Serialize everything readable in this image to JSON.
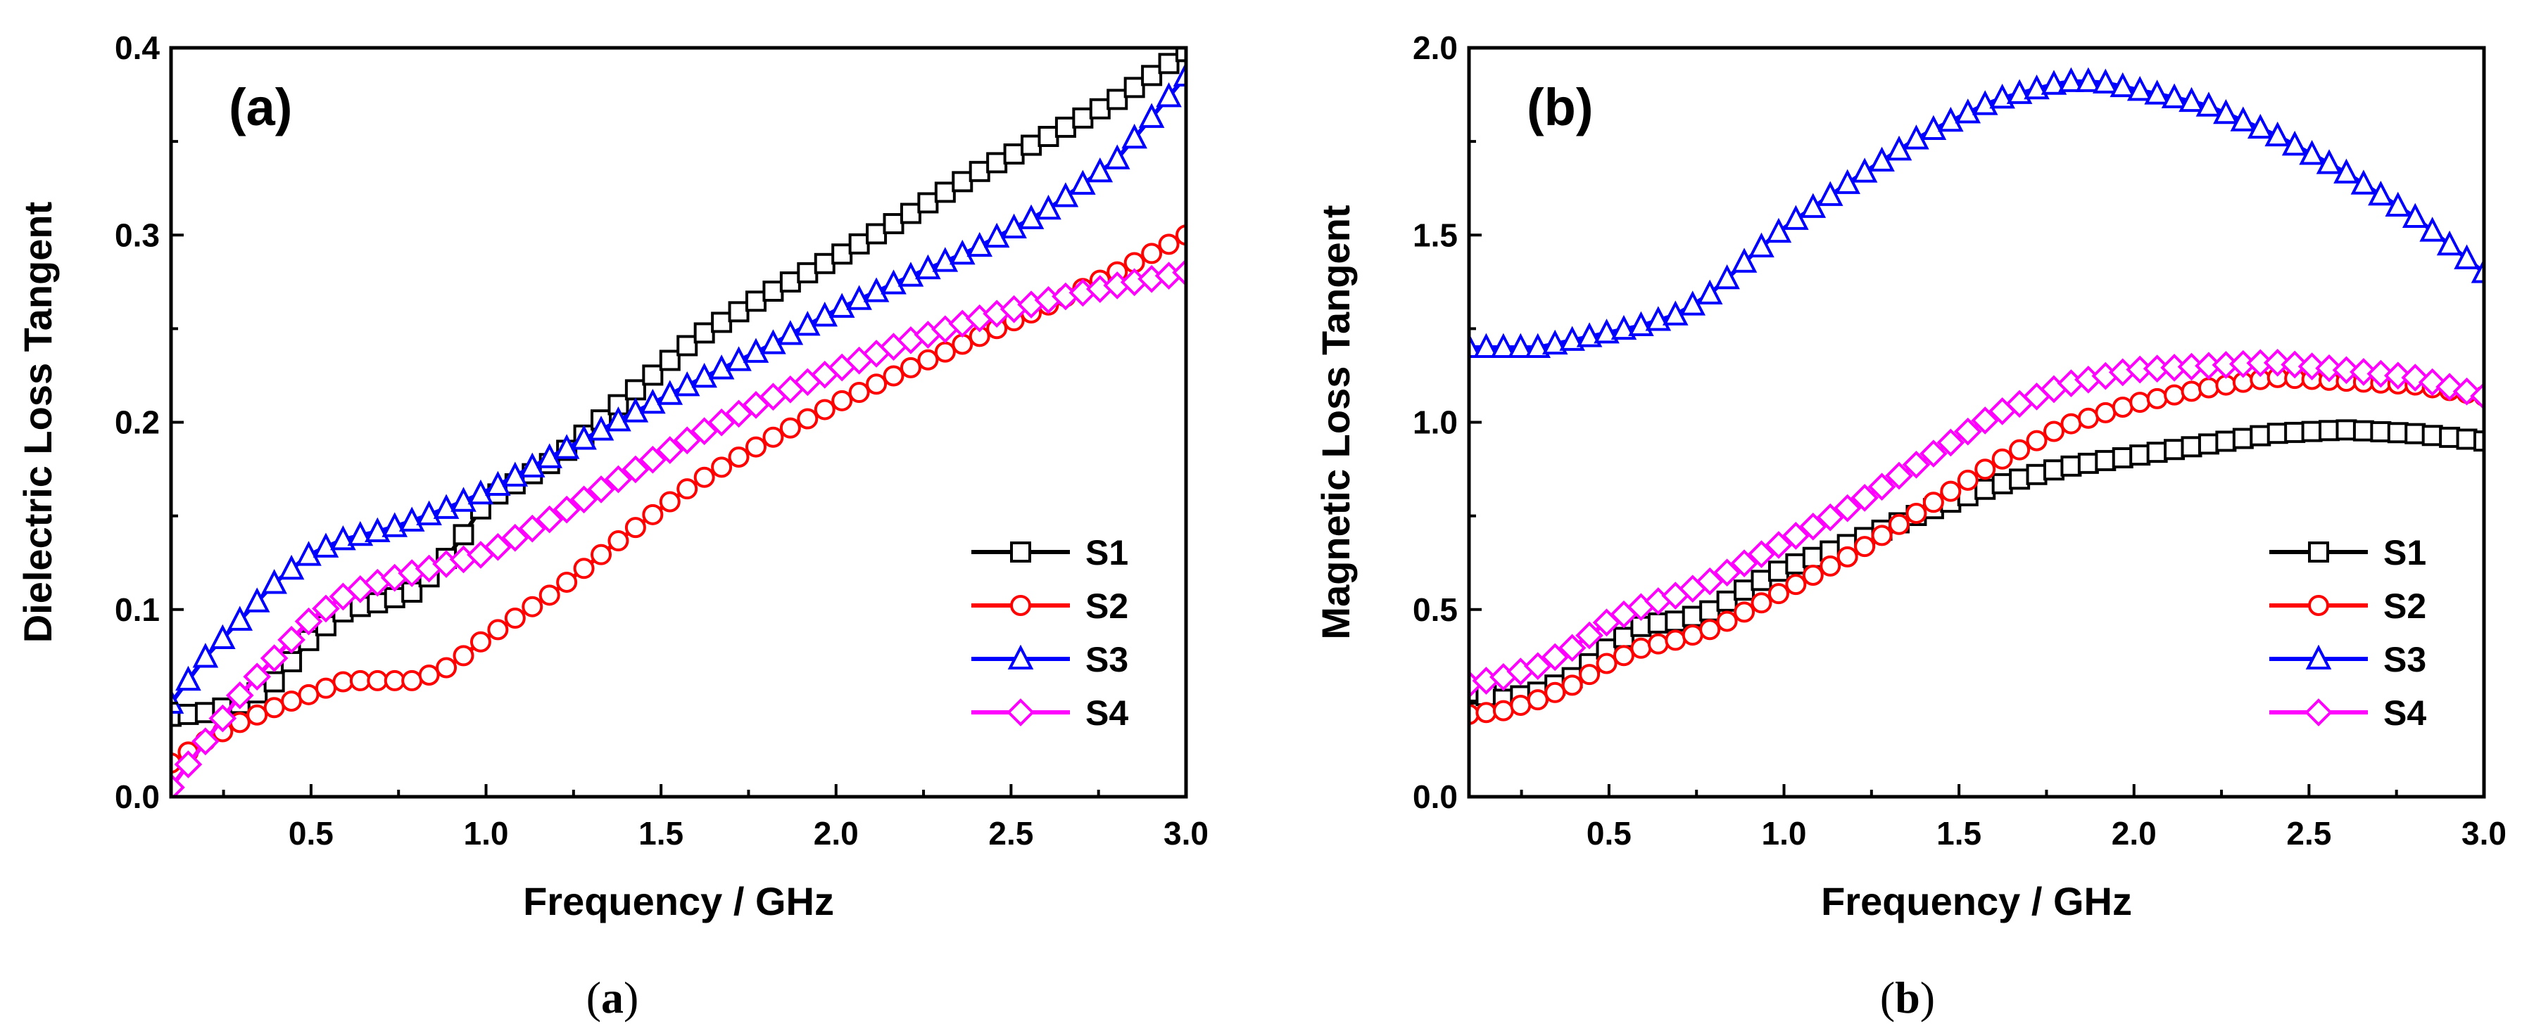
{
  "colors": {
    "S1": "#000000",
    "S2": "#ff0000",
    "S3": "#0000ff",
    "S4": "#ff00ff"
  },
  "markers": {
    "S1": "square",
    "S2": "circle",
    "S3": "triangle",
    "S4": "diamond"
  },
  "captions": [
    {
      "open": "(",
      "letter": "a",
      "close": ")"
    },
    {
      "open": "(",
      "letter": "b",
      "close": ")"
    }
  ],
  "chart_data": [
    {
      "type": "line",
      "panel_label": "(a)",
      "title": "",
      "xlabel": "Frequency / GHz",
      "ylabel": "Dielectric Loss Tangent",
      "xlim": [
        0.1,
        3.0
      ],
      "ylim": [
        0.0,
        0.4
      ],
      "xticks": [
        "0.5",
        "1.0",
        "1.5",
        "2.0",
        "2.5",
        "3.0"
      ],
      "yticks": [
        "0.0",
        "0.1",
        "0.2",
        "0.3",
        "0.4"
      ],
      "legend_position": "bottom-right",
      "series": [
        {
          "name": "S1",
          "x": [
            0.1,
            0.2,
            0.3,
            0.4,
            0.5,
            0.6,
            0.7,
            0.8,
            0.9,
            1.0,
            1.2,
            1.4,
            1.6,
            1.8,
            2.0,
            2.2,
            2.4,
            2.6,
            2.8,
            3.0
          ],
          "y": [
            0.043,
            0.045,
            0.05,
            0.062,
            0.085,
            0.1,
            0.104,
            0.11,
            0.13,
            0.158,
            0.18,
            0.213,
            0.245,
            0.268,
            0.288,
            0.31,
            0.333,
            0.352,
            0.372,
            0.398
          ]
        },
        {
          "name": "S2",
          "x": [
            0.1,
            0.2,
            0.3,
            0.4,
            0.5,
            0.6,
            0.7,
            0.8,
            0.9,
            1.0,
            1.2,
            1.4,
            1.6,
            1.8,
            2.0,
            2.2,
            2.4,
            2.6,
            2.8,
            3.0
          ],
          "y": [
            0.018,
            0.03,
            0.04,
            0.048,
            0.055,
            0.062,
            0.062,
            0.062,
            0.07,
            0.085,
            0.11,
            0.14,
            0.168,
            0.19,
            0.21,
            0.228,
            0.245,
            0.262,
            0.28,
            0.3
          ]
        },
        {
          "name": "S3",
          "x": [
            0.1,
            0.2,
            0.3,
            0.4,
            0.5,
            0.6,
            0.7,
            0.8,
            0.9,
            1.0,
            1.2,
            1.4,
            1.6,
            1.8,
            2.0,
            2.2,
            2.4,
            2.6,
            2.8,
            3.0
          ],
          "y": [
            0.05,
            0.075,
            0.095,
            0.115,
            0.13,
            0.138,
            0.142,
            0.148,
            0.155,
            0.163,
            0.183,
            0.203,
            0.222,
            0.24,
            0.26,
            0.277,
            0.293,
            0.313,
            0.34,
            0.385
          ]
        },
        {
          "name": "S4",
          "x": [
            0.1,
            0.2,
            0.3,
            0.4,
            0.5,
            0.6,
            0.7,
            0.8,
            0.9,
            1.0,
            1.2,
            1.4,
            1.6,
            1.8,
            2.0,
            2.2,
            2.4,
            2.6,
            2.8,
            3.0
          ],
          "y": [
            0.005,
            0.03,
            0.055,
            0.075,
            0.095,
            0.108,
            0.115,
            0.12,
            0.125,
            0.13,
            0.15,
            0.172,
            0.193,
            0.212,
            0.228,
            0.243,
            0.255,
            0.265,
            0.273,
            0.28
          ]
        }
      ]
    },
    {
      "type": "line",
      "panel_label": "(b)",
      "title": "",
      "xlabel": "Frequency / GHz",
      "ylabel": "Magnetic Loss Tangent",
      "xlim": [
        0.1,
        3.0
      ],
      "ylim": [
        0.0,
        2.0
      ],
      "xticks": [
        "0.5",
        "1.0",
        "1.5",
        "2.0",
        "2.5",
        "3.0"
      ],
      "yticks": [
        "0.0",
        "0.5",
        "1.0",
        "1.5",
        "2.0"
      ],
      "legend_position": "bottom-right",
      "series": [
        {
          "name": "S1",
          "x": [
            0.1,
            0.2,
            0.3,
            0.4,
            0.5,
            0.6,
            0.7,
            0.8,
            0.9,
            1.0,
            1.2,
            1.4,
            1.6,
            1.8,
            2.0,
            2.2,
            2.4,
            2.6,
            2.8,
            3.0
          ],
          "y": [
            0.28,
            0.26,
            0.28,
            0.32,
            0.4,
            0.46,
            0.47,
            0.5,
            0.56,
            0.61,
            0.68,
            0.76,
            0.83,
            0.88,
            0.91,
            0.94,
            0.97,
            0.98,
            0.97,
            0.95
          ]
        },
        {
          "name": "S2",
          "x": [
            0.1,
            0.2,
            0.3,
            0.4,
            0.5,
            0.6,
            0.7,
            0.8,
            0.9,
            1.0,
            1.2,
            1.4,
            1.6,
            1.8,
            2.0,
            2.2,
            2.4,
            2.6,
            2.8,
            3.0
          ],
          "y": [
            0.22,
            0.23,
            0.26,
            0.3,
            0.36,
            0.4,
            0.42,
            0.45,
            0.5,
            0.55,
            0.65,
            0.77,
            0.89,
            0.99,
            1.05,
            1.09,
            1.12,
            1.11,
            1.1,
            1.07
          ]
        },
        {
          "name": "S3",
          "x": [
            0.1,
            0.2,
            0.3,
            0.4,
            0.5,
            0.6,
            0.7,
            0.8,
            0.9,
            1.0,
            1.2,
            1.4,
            1.6,
            1.8,
            1.9,
            2.0,
            2.2,
            2.4,
            2.6,
            2.8,
            3.0
          ],
          "y": [
            1.2,
            1.2,
            1.2,
            1.22,
            1.24,
            1.26,
            1.29,
            1.35,
            1.44,
            1.52,
            1.65,
            1.77,
            1.86,
            1.91,
            1.91,
            1.89,
            1.85,
            1.77,
            1.67,
            1.55,
            1.4
          ]
        },
        {
          "name": "S4",
          "x": [
            0.1,
            0.2,
            0.3,
            0.4,
            0.5,
            0.6,
            0.7,
            0.8,
            0.9,
            1.0,
            1.2,
            1.4,
            1.6,
            1.8,
            2.0,
            2.2,
            2.4,
            2.6,
            2.8,
            3.0
          ],
          "y": [
            0.3,
            0.32,
            0.35,
            0.4,
            0.47,
            0.51,
            0.54,
            0.58,
            0.63,
            0.68,
            0.78,
            0.9,
            1.02,
            1.1,
            1.14,
            1.15,
            1.16,
            1.14,
            1.12,
            1.07
          ]
        }
      ]
    }
  ]
}
